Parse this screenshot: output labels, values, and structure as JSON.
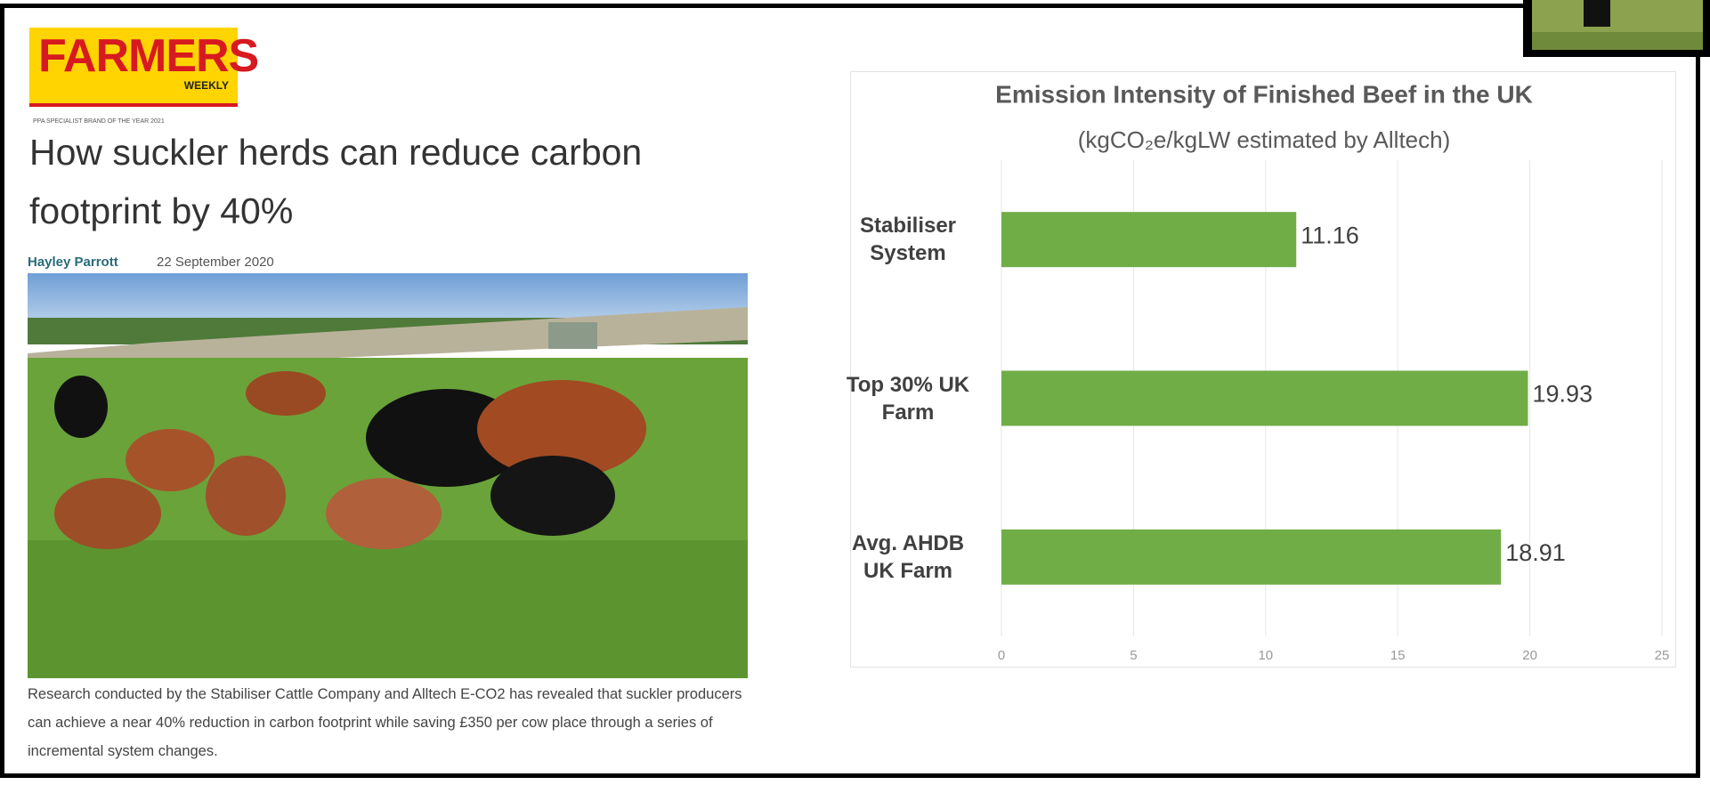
{
  "article": {
    "logo": "FARMERS",
    "logo_sub": "WEEKLY",
    "award": "PPA SPECIALIST BRAND OF THE YEAR 2021",
    "headline": "How suckler herds can reduce carbon footprint by 40%",
    "author": "Hayley Parrott",
    "date": "22 September 2020",
    "body": "Research conducted by the Stabiliser Cattle Company and Alltech E-CO2 has revealed that suckler producers can achieve a near 40% reduction in carbon footprint while saving £350 per cow place through a series of incremental system changes."
  },
  "chart_data": {
    "type": "bar",
    "orientation": "horizontal",
    "title": "Emission Intensity of Finished Beef in the UK",
    "subtitle": "(kgCO₂e/kgLW estimated by Alltech)",
    "categories": [
      "Stabiliser System",
      "Top 30% UK Farm",
      "Avg. AHDB UK Farm"
    ],
    "values": [
      11.16,
      19.93,
      18.91
    ],
    "color": "#70ad47",
    "xlim": [
      0,
      25
    ],
    "xticks": [
      0,
      5,
      10,
      15,
      20,
      25
    ],
    "grid": true
  }
}
